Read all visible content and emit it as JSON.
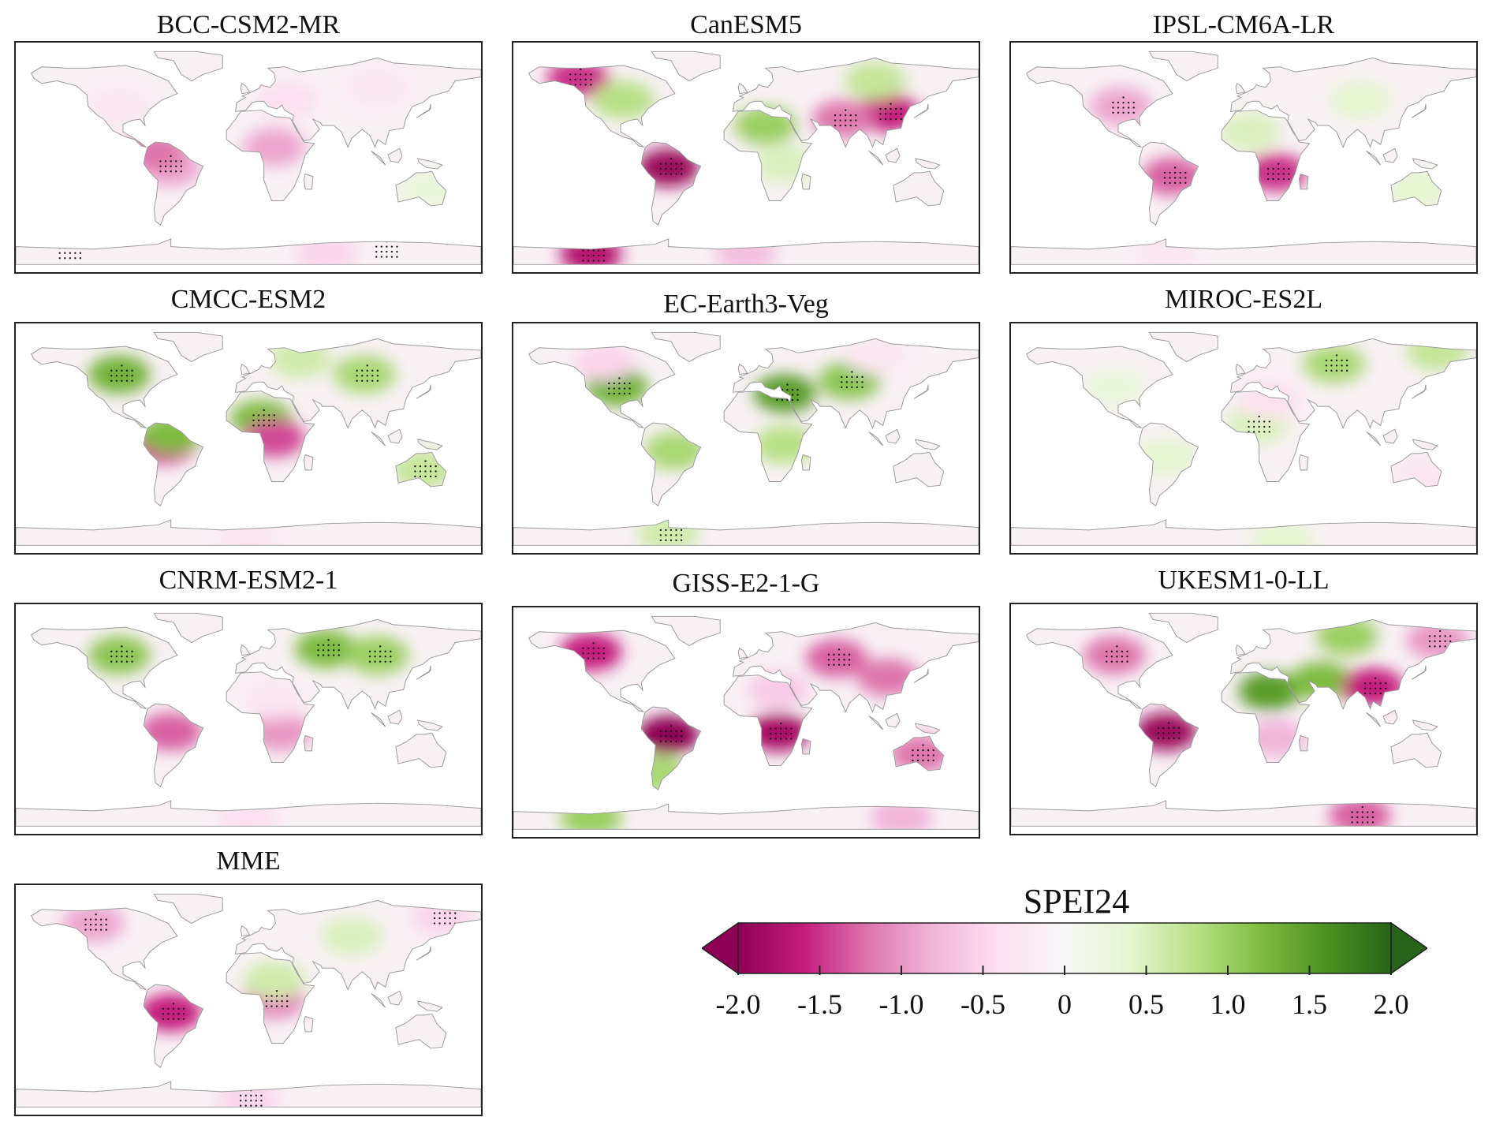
{
  "panels": [
    {
      "id": "bcc",
      "title": "BCC-CSM2-MR",
      "blobs": [
        {
          "lon": -60,
          "lat": -8,
          "v": -0.9
        },
        {
          "lon": -72,
          "lat": 4,
          "v": -1.2
        },
        {
          "lon": 20,
          "lat": 8,
          "v": -0.9
        },
        {
          "lon": 30,
          "lat": 45,
          "v": -0.4
        },
        {
          "lon": 100,
          "lat": 55,
          "v": -0.3
        },
        {
          "lon": -100,
          "lat": 40,
          "v": -0.3
        },
        {
          "lon": 60,
          "lat": -75,
          "v": -0.5
        },
        {
          "lon": 140,
          "lat": -25,
          "v": 0.3
        }
      ],
      "stipple": [
        {
          "lon": -62,
          "lat": -6
        },
        {
          "lon": 105,
          "lat": -73
        },
        {
          "lon": -140,
          "lat": -74
        }
      ]
    },
    {
      "id": "canesm5",
      "title": "CanESM5",
      "blobs": [
        {
          "lon": -60,
          "lat": -8,
          "v": -1.9
        },
        {
          "lon": -130,
          "lat": 62,
          "v": -1.5
        },
        {
          "lon": 110,
          "lat": 35,
          "v": -1.6
        },
        {
          "lon": 75,
          "lat": 30,
          "v": -1.2
        },
        {
          "lon": 15,
          "lat": 25,
          "v": 1.0
        },
        {
          "lon": -95,
          "lat": 45,
          "v": 0.8
        },
        {
          "lon": 100,
          "lat": 60,
          "v": 0.7
        },
        {
          "lon": -120,
          "lat": -76,
          "v": -1.7
        },
        {
          "lon": 30,
          "lat": -5,
          "v": 0.5
        },
        {
          "lon": 0,
          "lat": -75,
          "v": -0.7
        }
      ],
      "stipple": [
        {
          "lon": -60,
          "lat": -8
        },
        {
          "lon": -130,
          "lat": 62
        },
        {
          "lon": 110,
          "lat": 35
        },
        {
          "lon": 75,
          "lat": 30
        },
        {
          "lon": -120,
          "lat": -76
        }
      ]
    },
    {
      "id": "ipsl",
      "title": "IPSL-CM6A-LR",
      "blobs": [
        {
          "lon": 25,
          "lat": -12,
          "v": -1.5
        },
        {
          "lon": -55,
          "lat": -15,
          "v": -1.3
        },
        {
          "lon": -95,
          "lat": 40,
          "v": -0.9
        },
        {
          "lon": 5,
          "lat": 20,
          "v": 0.5
        },
        {
          "lon": 90,
          "lat": 45,
          "v": 0.4
        },
        {
          "lon": 135,
          "lat": -25,
          "v": 0.4
        },
        {
          "lon": -60,
          "lat": -75,
          "v": -0.3
        }
      ],
      "stipple": [
        {
          "lon": 25,
          "lat": -12
        },
        {
          "lon": -55,
          "lat": -15
        },
        {
          "lon": -95,
          "lat": 40
        }
      ]
    },
    {
      "id": "cmcc",
      "title": "CMCC-ESM2",
      "blobs": [
        {
          "lon": -100,
          "lat": 50,
          "v": 1.3
        },
        {
          "lon": 10,
          "lat": 15,
          "v": 1.2
        },
        {
          "lon": 90,
          "lat": 50,
          "v": 0.9
        },
        {
          "lon": -65,
          "lat": -5,
          "v": -1.5
        },
        {
          "lon": 20,
          "lat": 0,
          "v": -1.4
        },
        {
          "lon": 135,
          "lat": -25,
          "v": 0.7
        },
        {
          "lon": 40,
          "lat": 62,
          "v": 0.6
        },
        {
          "lon": 0,
          "lat": -78,
          "v": -0.3
        },
        {
          "lon": -60,
          "lat": 3,
          "v": 1.2
        }
      ],
      "stipple": [
        {
          "lon": -100,
          "lat": 50
        },
        {
          "lon": 10,
          "lat": 15
        },
        {
          "lon": 90,
          "lat": 50
        },
        {
          "lon": 135,
          "lat": -25
        }
      ]
    },
    {
      "id": "ecearth",
      "title": "EC-Earth3-Veg",
      "blobs": [
        {
          "lon": -100,
          "lat": 40,
          "v": 1.3
        },
        {
          "lon": 30,
          "lat": 35,
          "v": 1.5
        },
        {
          "lon": 80,
          "lat": 45,
          "v": 1.1
        },
        {
          "lon": -55,
          "lat": -10,
          "v": 0.9
        },
        {
          "lon": 30,
          "lat": -5,
          "v": 0.8
        },
        {
          "lon": -60,
          "lat": -75,
          "v": 0.6
        },
        {
          "lon": -110,
          "lat": 60,
          "v": -0.5
        },
        {
          "lon": 100,
          "lat": 65,
          "v": -0.3
        }
      ],
      "stipple": [
        {
          "lon": -100,
          "lat": 40
        },
        {
          "lon": 30,
          "lat": 35
        },
        {
          "lon": 80,
          "lat": 45
        },
        {
          "lon": -60,
          "lat": -75
        }
      ]
    },
    {
      "id": "miroc",
      "title": "MIROC-ES2L",
      "blobs": [
        {
          "lon": 70,
          "lat": 58,
          "v": 0.9
        },
        {
          "lon": 10,
          "lat": 10,
          "v": 0.5
        },
        {
          "lon": -60,
          "lat": -15,
          "v": 0.4
        },
        {
          "lon": -100,
          "lat": 40,
          "v": 0.3
        },
        {
          "lon": 20,
          "lat": 30,
          "v": -0.4
        },
        {
          "lon": 150,
          "lat": 68,
          "v": 0.7
        },
        {
          "lon": 140,
          "lat": -30,
          "v": -0.3
        },
        {
          "lon": 30,
          "lat": -80,
          "v": 0.4
        }
      ],
      "stipple": [
        {
          "lon": 70,
          "lat": 58
        },
        {
          "lon": 10,
          "lat": 10
        }
      ]
    },
    {
      "id": "cnrm",
      "title": "CNRM-ESM2-1",
      "blobs": [
        {
          "lon": -100,
          "lat": 50,
          "v": 1.1
        },
        {
          "lon": 60,
          "lat": 55,
          "v": 1.2
        },
        {
          "lon": 100,
          "lat": 50,
          "v": 1.0
        },
        {
          "lon": -60,
          "lat": -10,
          "v": -1.3
        },
        {
          "lon": 25,
          "lat": -10,
          "v": -1.0
        },
        {
          "lon": 20,
          "lat": 15,
          "v": -0.3
        },
        {
          "lon": 0,
          "lat": -78,
          "v": -0.4
        }
      ],
      "stipple": [
        {
          "lon": -100,
          "lat": 50
        },
        {
          "lon": 60,
          "lat": 55
        },
        {
          "lon": 100,
          "lat": 50
        }
      ]
    },
    {
      "id": "giss",
      "title": "GISS-E2-1-G",
      "blobs": [
        {
          "lon": -60,
          "lat": -10,
          "v": -2.0
        },
        {
          "lon": 25,
          "lat": -8,
          "v": -1.8
        },
        {
          "lon": -120,
          "lat": 55,
          "v": -1.6
        },
        {
          "lon": 70,
          "lat": 50,
          "v": -1.3
        },
        {
          "lon": 110,
          "lat": 35,
          "v": -1.2
        },
        {
          "lon": 135,
          "lat": -25,
          "v": -1.2
        },
        {
          "lon": -70,
          "lat": -40,
          "v": 0.9
        },
        {
          "lon": -120,
          "lat": -75,
          "v": 1.0
        },
        {
          "lon": 120,
          "lat": -75,
          "v": -0.8
        },
        {
          "lon": 25,
          "lat": 25,
          "v": -0.6
        }
      ],
      "stipple": [
        {
          "lon": -60,
          "lat": -10
        },
        {
          "lon": 25,
          "lat": -8
        },
        {
          "lon": -120,
          "lat": 55
        },
        {
          "lon": 70,
          "lat": 50
        },
        {
          "lon": 135,
          "lat": -25
        }
      ]
    },
    {
      "id": "ukesm",
      "title": "UKESM1-0-LL",
      "blobs": [
        {
          "lon": -60,
          "lat": -10,
          "v": -1.9
        },
        {
          "lon": 20,
          "lat": 22,
          "v": 1.5
        },
        {
          "lon": 60,
          "lat": 30,
          "v": 1.2
        },
        {
          "lon": 80,
          "lat": 65,
          "v": 1.0
        },
        {
          "lon": 100,
          "lat": 25,
          "v": -1.6
        },
        {
          "lon": -100,
          "lat": 50,
          "v": -1.2
        },
        {
          "lon": 25,
          "lat": -15,
          "v": -0.8
        },
        {
          "lon": 90,
          "lat": -76,
          "v": -1.3
        },
        {
          "lon": 150,
          "lat": 62,
          "v": -1.0
        }
      ],
      "stipple": [
        {
          "lon": -60,
          "lat": -10
        },
        {
          "lon": 100,
          "lat": 25
        },
        {
          "lon": -100,
          "lat": 50
        },
        {
          "lon": 90,
          "lat": -76
        },
        {
          "lon": 150,
          "lat": 62
        }
      ]
    },
    {
      "id": "mme",
      "title": "MME",
      "blobs": [
        {
          "lon": -60,
          "lat": -10,
          "v": -1.6
        },
        {
          "lon": 20,
          "lat": 0,
          "v": -1.1
        },
        {
          "lon": 20,
          "lat": 15,
          "v": 0.6
        },
        {
          "lon": 80,
          "lat": 50,
          "v": 0.5
        },
        {
          "lon": -120,
          "lat": 60,
          "v": -0.9
        },
        {
          "lon": 0,
          "lat": -78,
          "v": -0.5
        },
        {
          "lon": 150,
          "lat": 65,
          "v": -0.5
        }
      ],
      "stipple": [
        {
          "lon": -60,
          "lat": -10
        },
        {
          "lon": 20,
          "lat": 0
        },
        {
          "lon": -120,
          "lat": 60
        },
        {
          "lon": 0,
          "lat": -78
        },
        {
          "lon": 150,
          "lat": 65
        }
      ]
    }
  ],
  "colorbar": {
    "title": "SPEI24",
    "min": -2.0,
    "max": 2.0,
    "ticks": [
      "-2.0",
      "-1.5",
      "-1.0",
      "-0.5",
      "0",
      "0.5",
      "1.0",
      "1.5",
      "2.0"
    ],
    "tick_values": [
      -2.0,
      -1.5,
      -1.0,
      -0.5,
      0,
      0.5,
      1.0,
      1.5,
      2.0
    ],
    "extend": "both",
    "colors": [
      "#8e0152",
      "#c51b7d",
      "#de77ae",
      "#f1b6da",
      "#fde0ef",
      "#f7f7f7",
      "#e6f5d0",
      "#b8e186",
      "#7fbc41",
      "#4d9221",
      "#276419"
    ]
  }
}
